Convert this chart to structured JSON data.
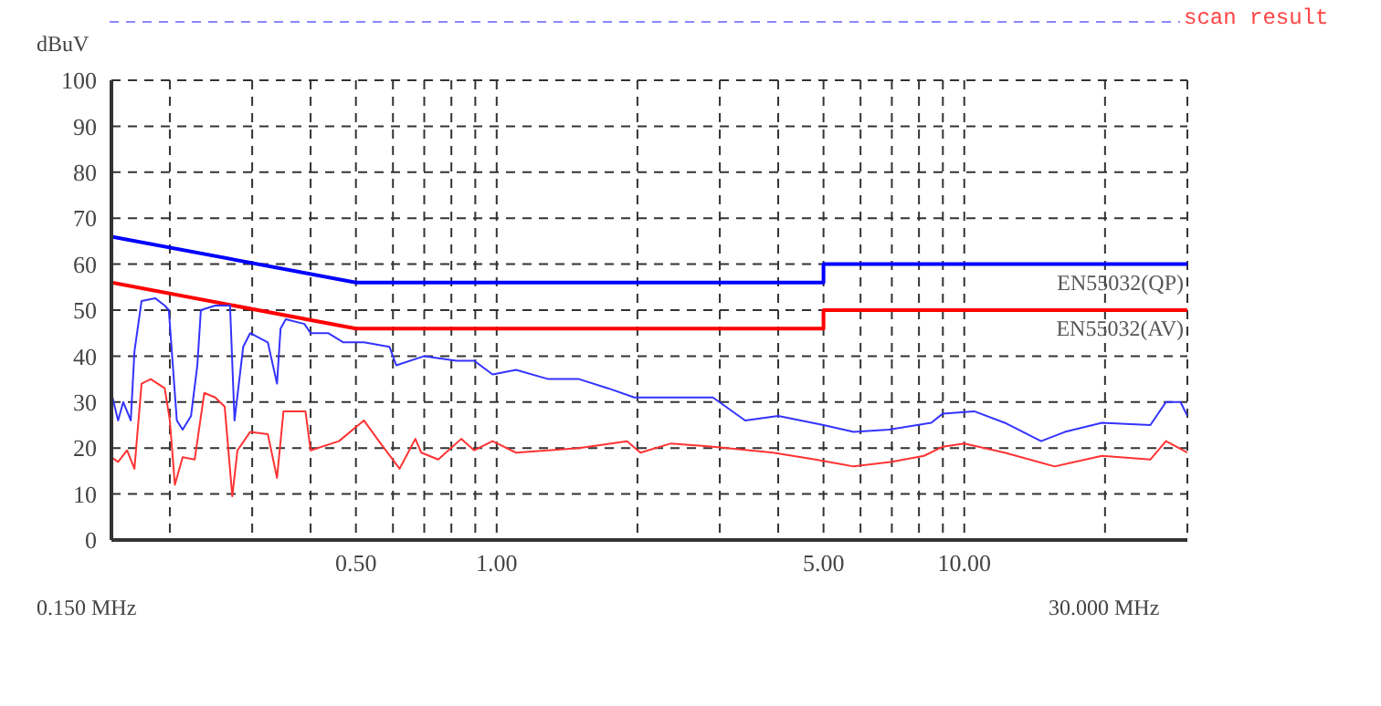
{
  "chart_data": {
    "type": "line",
    "title": "scan result",
    "ylabel": "dBuV",
    "annotations": [
      "0.150 MHz",
      "30.000 MHz"
    ],
    "log": "x",
    "grid": true,
    "xlim": [
      0.15,
      30
    ],
    "xticks": [
      {
        "value": 0.2,
        "label": null
      },
      {
        "value": 0.3,
        "label": null
      },
      {
        "value": 0.4,
        "label": null
      },
      {
        "value": 0.5,
        "label": "0.50"
      },
      {
        "value": 0.6,
        "label": null
      },
      {
        "value": 0.7,
        "label": null
      },
      {
        "value": 0.8,
        "label": null
      },
      {
        "value": 0.9,
        "label": null
      },
      {
        "value": 1,
        "label": "1.00"
      },
      {
        "value": 2,
        "label": null
      },
      {
        "value": 3,
        "label": null
      },
      {
        "value": 4,
        "label": null
      },
      {
        "value": 5,
        "label": "5.00"
      },
      {
        "value": 6,
        "label": null
      },
      {
        "value": 7,
        "label": null
      },
      {
        "value": 8,
        "label": null
      },
      {
        "value": 9,
        "label": null
      },
      {
        "value": 10,
        "label": "10.00"
      },
      {
        "value": 20,
        "label": null
      }
    ],
    "ylim": [
      0,
      100
    ],
    "yticks": [
      0,
      10,
      20,
      30,
      40,
      50,
      60,
      70,
      80,
      90,
      100
    ],
    "series": [
      {
        "name": "EN55032(QP)",
        "color": "#0000ff",
        "x": [
          0.15,
          0.5,
          5,
          5,
          30
        ],
        "values": [
          66,
          56,
          56,
          60,
          60
        ]
      },
      {
        "name": "EN55032(AV)",
        "color": "#ff0000",
        "x": [
          0.15,
          0.5,
          5,
          5,
          30
        ],
        "values": [
          56,
          46,
          46,
          50,
          50
        ]
      },
      {
        "color": "#3333ff",
        "x": [
          0.15,
          0.155,
          0.159,
          0.165,
          0.168,
          0.174,
          0.186,
          0.195,
          0.199,
          0.207,
          0.213,
          0.222,
          0.229,
          0.233,
          0.25,
          0.269,
          0.275,
          0.287,
          0.297,
          0.324,
          0.339,
          0.345,
          0.354,
          0.388,
          0.4,
          0.436,
          0.47,
          0.52,
          0.59,
          0.61,
          0.7,
          0.82,
          0.895,
          0.98,
          1.1,
          1.29,
          1.5,
          1.73,
          1.97,
          2.36,
          2.41,
          2.9,
          3.4,
          4,
          5,
          5.8,
          6.9,
          8.5,
          9,
          10.5,
          12.2,
          14.6,
          16.4,
          19.7,
          25,
          27,
          29,
          30
        ],
        "values": [
          32,
          26,
          30,
          26,
          41,
          52,
          52.6,
          51,
          50,
          26,
          24,
          27,
          38,
          50,
          51,
          51,
          26,
          42,
          45,
          43,
          34,
          46,
          48,
          47,
          45,
          45,
          43,
          43,
          42,
          38,
          40,
          39,
          39,
          36,
          37,
          35,
          35,
          33,
          31,
          31,
          31,
          31,
          26,
          27,
          25,
          23.5,
          24,
          25.5,
          27.5,
          28,
          25.5,
          21.5,
          23.5,
          25.5,
          25,
          30,
          30,
          27
        ]
      },
      {
        "color": "#ff3333",
        "x": [
          0.15,
          0.155,
          0.162,
          0.168,
          0.174,
          0.182,
          0.195,
          0.2,
          0.205,
          0.213,
          0.226,
          0.237,
          0.25,
          0.262,
          0.272,
          0.279,
          0.297,
          0.324,
          0.339,
          0.35,
          0.39,
          0.4,
          0.46,
          0.52,
          0.56,
          0.62,
          0.67,
          0.69,
          0.75,
          0.84,
          0.895,
          0.98,
          1.1,
          1.5,
          1.9,
          2.03,
          2.36,
          2.9,
          3.9,
          4.8,
          5.8,
          7,
          8.2,
          9,
          10,
          12.2,
          15.6,
          19.7,
          25,
          27,
          30
        ],
        "values": [
          18,
          17,
          19.5,
          15.5,
          34,
          35,
          33,
          26,
          12,
          18,
          17.5,
          32,
          31,
          29,
          9.5,
          19.5,
          23.5,
          23,
          13.5,
          28,
          28,
          19.5,
          21.5,
          26,
          21.5,
          15.5,
          22,
          19,
          17.5,
          22,
          19.5,
          21.5,
          19,
          20,
          21.5,
          19,
          21,
          20.3,
          19,
          17.5,
          16,
          17,
          18.3,
          20.3,
          21,
          19,
          16,
          18.3,
          17.5,
          21.5,
          19
        ]
      }
    ]
  }
}
